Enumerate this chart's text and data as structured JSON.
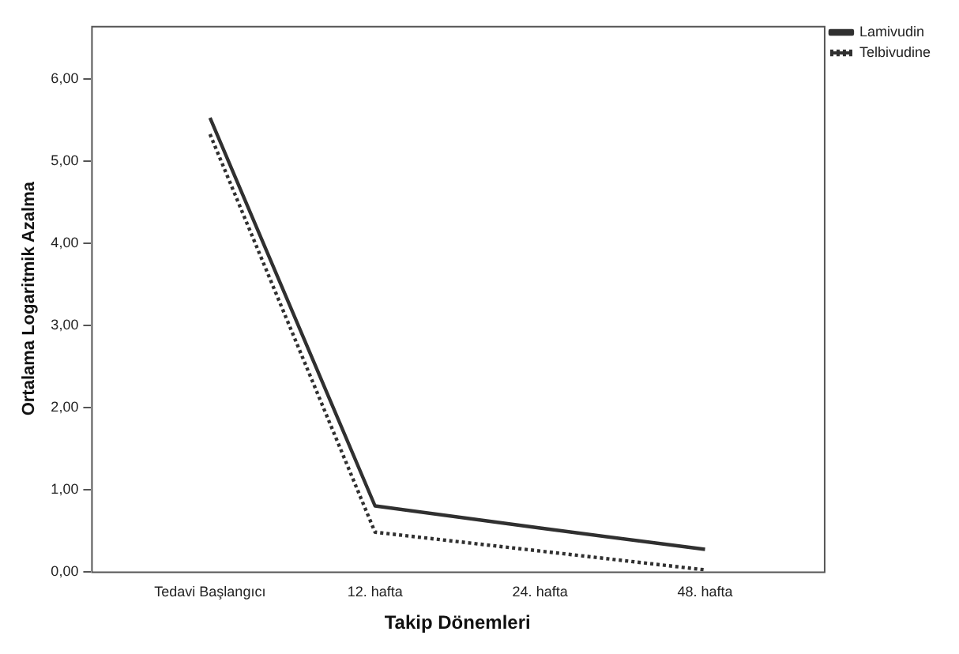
{
  "chart_data": {
    "type": "line",
    "xlabel": "Takip Dönemleri",
    "ylabel": "Ortalama Logaritmik Azalma",
    "categories": [
      "Tedavi Başlangıcı",
      "12. hafta",
      "24. hafta",
      "48. hafta"
    ],
    "series": [
      {
        "name": "Lamivudin",
        "color": "#303030",
        "values": [
          5.53,
          0.8,
          0.53,
          0.27
        ],
        "line_style": "solid"
      },
      {
        "name": "Telbivudine",
        "color": "#303030",
        "values": [
          5.33,
          0.48,
          0.25,
          0.02
        ],
        "line_style": "dotted"
      }
    ],
    "ylim": [
      0,
      6.65
    ],
    "yticks": [
      {
        "value": 0,
        "label": "0,00"
      },
      {
        "value": 1,
        "label": "1,00"
      },
      {
        "value": 2,
        "label": "2,00"
      },
      {
        "value": 3,
        "label": "3,00"
      },
      {
        "value": 4,
        "label": "4,00"
      },
      {
        "value": 5,
        "label": "5,00"
      },
      {
        "value": 6,
        "label": "6,00"
      }
    ],
    "grid": false,
    "legend": "top right",
    "marker": "none"
  }
}
